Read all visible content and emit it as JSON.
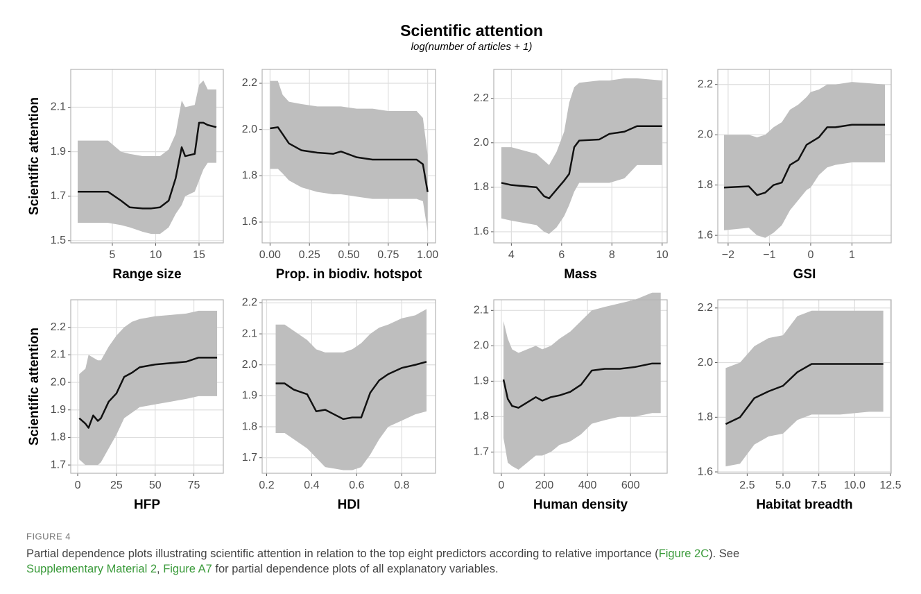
{
  "figure": {
    "title": "Scientific attention",
    "subtitle": "log(number of articles + 1)"
  },
  "chart_data": [
    {
      "type": "line",
      "xlabel": "Range size",
      "ylabel": "Scientific attention",
      "grid": true,
      "line_color": "#111111",
      "band_color": "#bebebe",
      "xlim": [
        0.2,
        17.8
      ],
      "ylim": [
        1.49,
        2.27
      ],
      "xticks": [
        5,
        10,
        15
      ],
      "yticks": [
        1.5,
        1.7,
        1.9,
        2.1
      ],
      "x": [
        1,
        3,
        4.5,
        6,
        7,
        8.5,
        9.5,
        10.5,
        11.5,
        12.3,
        13,
        13.4,
        14.5,
        15,
        15.5,
        16,
        17
      ],
      "values": [
        1.72,
        1.72,
        1.72,
        1.68,
        1.65,
        1.645,
        1.645,
        1.65,
        1.68,
        1.78,
        1.92,
        1.88,
        1.89,
        2.03,
        2.03,
        2.02,
        2.01
      ],
      "upper": [
        1.95,
        1.95,
        1.95,
        1.9,
        1.89,
        1.88,
        1.88,
        1.88,
        1.91,
        1.98,
        2.13,
        2.1,
        2.11,
        2.2,
        2.22,
        2.18,
        2.18
      ],
      "lower": [
        1.58,
        1.58,
        1.58,
        1.57,
        1.56,
        1.54,
        1.53,
        1.53,
        1.56,
        1.62,
        1.66,
        1.7,
        1.72,
        1.77,
        1.82,
        1.85,
        1.85
      ]
    },
    {
      "type": "line",
      "xlabel": "Prop. in biodiv. hotspot",
      "grid": true,
      "line_color": "#111111",
      "band_color": "#bebebe",
      "xlim": [
        -0.05,
        1.05
      ],
      "ylim": [
        1.51,
        2.26
      ],
      "xticks": [
        {
          "value": 0,
          "label": "0.00"
        },
        0.25,
        {
          "value": 0.5,
          "label": "0.50"
        },
        0.75,
        {
          "value": 1,
          "label": "1.00"
        }
      ],
      "yticks": [
        1.6,
        1.8,
        {
          "value": 2,
          "label": "2.0"
        },
        2.2
      ],
      "x": [
        0,
        0.05,
        0.08,
        0.12,
        0.2,
        0.3,
        0.4,
        0.45,
        0.55,
        0.65,
        0.75,
        0.85,
        0.93,
        0.97,
        1.0
      ],
      "values": [
        2.005,
        2.01,
        1.98,
        1.94,
        1.91,
        1.9,
        1.895,
        1.905,
        1.88,
        1.87,
        1.87,
        1.87,
        1.87,
        1.85,
        1.73
      ],
      "upper": [
        2.21,
        2.21,
        2.15,
        2.12,
        2.11,
        2.1,
        2.1,
        2.1,
        2.09,
        2.09,
        2.08,
        2.08,
        2.08,
        2.05,
        1.89
      ],
      "lower": [
        1.83,
        1.83,
        1.81,
        1.78,
        1.75,
        1.73,
        1.72,
        1.72,
        1.71,
        1.7,
        1.7,
        1.7,
        1.7,
        1.69,
        1.56
      ]
    },
    {
      "type": "line",
      "xlabel": "Mass",
      "grid": true,
      "line_color": "#111111",
      "band_color": "#bebebe",
      "xlim": [
        3.3,
        10.2
      ],
      "ylim": [
        1.55,
        2.33
      ],
      "xticks": [
        4,
        6,
        8,
        10
      ],
      "yticks": [
        1.6,
        1.8,
        {
          "value": 2,
          "label": "2.0"
        },
        2.2
      ],
      "x": [
        3.6,
        4,
        5,
        5.3,
        5.5,
        5.8,
        6.1,
        6.3,
        6.5,
        6.7,
        7.5,
        7.9,
        8.5,
        9,
        10
      ],
      "values": [
        1.82,
        1.81,
        1.8,
        1.76,
        1.75,
        1.79,
        1.83,
        1.86,
        1.98,
        2.01,
        2.015,
        2.04,
        2.05,
        2.075,
        2.075
      ],
      "upper": [
        1.98,
        1.98,
        1.95,
        1.92,
        1.9,
        1.96,
        2.05,
        2.18,
        2.25,
        2.27,
        2.28,
        2.28,
        2.29,
        2.29,
        2.28
      ],
      "lower": [
        1.66,
        1.65,
        1.63,
        1.6,
        1.59,
        1.62,
        1.67,
        1.72,
        1.78,
        1.82,
        1.82,
        1.82,
        1.84,
        1.9,
        1.9
      ]
    },
    {
      "type": "line",
      "xlabel": "GSI",
      "grid": true,
      "line_color": "#111111",
      "band_color": "#bebebe",
      "xlim": [
        -2.25,
        1.95
      ],
      "ylim": [
        1.57,
        2.26
      ],
      "xticks": [
        {
          "value": -2,
          "label": "−2"
        },
        {
          "value": -1,
          "label": "−1"
        },
        0,
        1
      ],
      "yticks": [
        1.6,
        1.8,
        {
          "value": 2,
          "label": "2.0"
        },
        2.2
      ],
      "x": [
        -2.1,
        -1.5,
        -1.3,
        -1.1,
        -0.9,
        -0.7,
        -0.5,
        -0.3,
        -0.1,
        0,
        0.2,
        0.4,
        0.6,
        1,
        1.8
      ],
      "values": [
        1.79,
        1.795,
        1.76,
        1.77,
        1.8,
        1.81,
        1.88,
        1.9,
        1.96,
        1.97,
        1.99,
        2.03,
        2.03,
        2.04,
        2.04
      ],
      "upper": [
        2.0,
        2.0,
        1.99,
        2.0,
        2.03,
        2.05,
        2.1,
        2.12,
        2.15,
        2.17,
        2.18,
        2.2,
        2.2,
        2.21,
        2.2
      ],
      "lower": [
        1.62,
        1.63,
        1.6,
        1.59,
        1.61,
        1.64,
        1.7,
        1.74,
        1.78,
        1.79,
        1.84,
        1.87,
        1.88,
        1.89,
        1.89
      ]
    },
    {
      "type": "line",
      "xlabel": "HFP",
      "ylabel": "Scientific attention",
      "grid": true,
      "line_color": "#111111",
      "band_color": "#bebebe",
      "xlim": [
        -4.5,
        94
      ],
      "ylim": [
        1.67,
        2.3
      ],
      "xticks": [
        0,
        25,
        50,
        75
      ],
      "yticks": [
        1.7,
        1.8,
        1.9,
        {
          "value": 2,
          "label": "2.0"
        },
        2.1,
        2.2
      ],
      "x": [
        1,
        5,
        7,
        10,
        13,
        15,
        20,
        25,
        30,
        35,
        40,
        50,
        60,
        70,
        78,
        90
      ],
      "values": [
        1.87,
        1.85,
        1.835,
        1.88,
        1.86,
        1.87,
        1.93,
        1.96,
        2.02,
        2.035,
        2.055,
        2.065,
        2.07,
        2.075,
        2.09,
        2.09
      ],
      "upper": [
        2.03,
        2.05,
        2.1,
        2.09,
        2.08,
        2.08,
        2.13,
        2.17,
        2.2,
        2.22,
        2.23,
        2.24,
        2.245,
        2.25,
        2.26,
        2.26
      ],
      "lower": [
        1.72,
        1.7,
        1.7,
        1.7,
        1.7,
        1.71,
        1.76,
        1.81,
        1.87,
        1.89,
        1.91,
        1.92,
        1.93,
        1.94,
        1.95,
        1.95
      ]
    },
    {
      "type": "line",
      "xlabel": "HDI",
      "grid": true,
      "line_color": "#111111",
      "band_color": "#bebebe",
      "xlim": [
        0.18,
        0.95
      ],
      "ylim": [
        1.65,
        2.21
      ],
      "xticks": [
        0.2,
        0.4,
        0.6,
        0.8
      ],
      "yticks": [
        1.7,
        1.8,
        1.9,
        {
          "value": 2,
          "label": "2.0"
        },
        2.1,
        2.2
      ],
      "x": [
        0.24,
        0.28,
        0.32,
        0.38,
        0.42,
        0.46,
        0.5,
        0.54,
        0.58,
        0.62,
        0.66,
        0.7,
        0.74,
        0.8,
        0.86,
        0.91
      ],
      "values": [
        1.94,
        1.94,
        1.92,
        1.905,
        1.85,
        1.855,
        1.84,
        1.825,
        1.83,
        1.83,
        1.91,
        1.95,
        1.97,
        1.99,
        2.0,
        2.01
      ],
      "upper": [
        2.13,
        2.13,
        2.11,
        2.08,
        2.05,
        2.04,
        2.04,
        2.04,
        2.05,
        2.07,
        2.1,
        2.12,
        2.13,
        2.15,
        2.16,
        2.18
      ],
      "lower": [
        1.78,
        1.78,
        1.76,
        1.73,
        1.7,
        1.67,
        1.665,
        1.66,
        1.66,
        1.67,
        1.71,
        1.76,
        1.8,
        1.82,
        1.84,
        1.85
      ]
    },
    {
      "type": "line",
      "xlabel": "Human density",
      "grid": true,
      "line_color": "#111111",
      "band_color": "#bebebe",
      "xlim": [
        -35,
        770
      ],
      "ylim": [
        1.64,
        2.13
      ],
      "xticks": [
        0,
        200,
        400,
        600
      ],
      "yticks": [
        1.7,
        1.8,
        1.9,
        {
          "value": 2,
          "label": "2.0"
        },
        2.1
      ],
      "x": [
        10,
        30,
        50,
        80,
        120,
        160,
        190,
        230,
        270,
        320,
        370,
        420,
        480,
        550,
        620,
        700,
        740
      ],
      "values": [
        1.905,
        1.85,
        1.83,
        1.825,
        1.84,
        1.855,
        1.845,
        1.855,
        1.86,
        1.87,
        1.89,
        1.93,
        1.935,
        1.935,
        1.94,
        1.95,
        1.95
      ],
      "upper": [
        2.07,
        2.02,
        1.99,
        1.98,
        1.99,
        2.0,
        1.99,
        2.0,
        2.02,
        2.04,
        2.07,
        2.1,
        2.11,
        2.12,
        2.13,
        2.15,
        2.15
      ],
      "lower": [
        1.74,
        1.67,
        1.66,
        1.65,
        1.67,
        1.69,
        1.69,
        1.7,
        1.72,
        1.73,
        1.75,
        1.78,
        1.79,
        1.8,
        1.8,
        1.81,
        1.81
      ]
    },
    {
      "type": "line",
      "xlabel": "Habitat breadth",
      "grid": true,
      "line_color": "#111111",
      "band_color": "#bebebe",
      "xlim": [
        0.45,
        12.55
      ],
      "ylim": [
        1.595,
        2.23
      ],
      "xticks": [
        2.5,
        {
          "value": 5,
          "label": "5.0"
        },
        7.5,
        {
          "value": 10,
          "label": "10.0"
        },
        12.5
      ],
      "yticks": [
        1.6,
        1.8,
        {
          "value": 2,
          "label": "2.0"
        },
        2.2
      ],
      "x": [
        1,
        2,
        3,
        4,
        5,
        6,
        7,
        8,
        9,
        10,
        11,
        12
      ],
      "values": [
        1.775,
        1.8,
        1.87,
        1.895,
        1.915,
        1.965,
        1.995,
        1.995,
        1.995,
        1.995,
        1.995,
        1.995
      ],
      "upper": [
        1.98,
        2.0,
        2.06,
        2.09,
        2.1,
        2.17,
        2.19,
        2.19,
        2.19,
        2.19,
        2.19,
        2.19
      ],
      "lower": [
        1.62,
        1.63,
        1.7,
        1.73,
        1.74,
        1.79,
        1.81,
        1.81,
        1.81,
        1.815,
        1.82,
        1.82
      ]
    }
  ],
  "caption": {
    "label": "FIGURE 4",
    "link_color": "#3a9a3a",
    "lines": [
      [
        {
          "text": "Partial dependence plots illustrating scientific attention in relation to the top eight predictors according to relative importance ("
        },
        {
          "text": "Figure 2C",
          "link": true
        },
        {
          "text": "). See"
        }
      ],
      [
        {
          "text": "Supplementary Material 2",
          "link": true
        },
        {
          "text": ", "
        },
        {
          "text": "Figure A7",
          "link": true
        },
        {
          "text": " for partial dependence plots of all explanatory variables."
        }
      ]
    ]
  }
}
